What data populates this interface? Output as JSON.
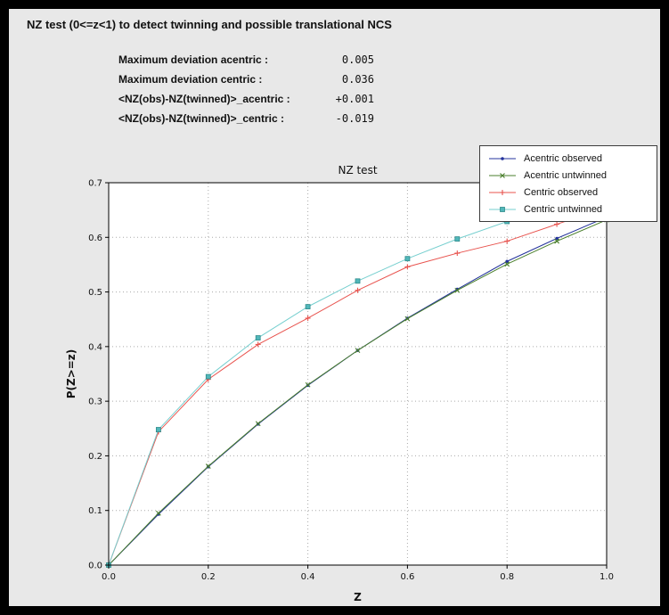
{
  "window": {
    "title": "NZ test (0<=z<1) to detect twinning and possible translational NCS"
  },
  "stats": {
    "rows": [
      {
        "label": "Maximum deviation acentric :",
        "value": "0.005"
      },
      {
        "label": "Maximum deviation centric :",
        "value": "0.036"
      },
      {
        "label": "<NZ(obs)-NZ(twinned)>_acentric :",
        "value": "+0.001"
      },
      {
        "label": "<NZ(obs)-NZ(twinned)>_centric :",
        "value": "-0.019"
      }
    ]
  },
  "chart_data": {
    "type": "line",
    "title": "NZ test",
    "xlabel": "Z",
    "ylabel": "P(Z>=z)",
    "xlim": [
      0.0,
      1.0
    ],
    "ylim": [
      0.0,
      0.7
    ],
    "x_ticks": [
      0.0,
      0.2,
      0.4,
      0.6,
      0.8,
      1.0
    ],
    "y_ticks": [
      0.0,
      0.1,
      0.2,
      0.3,
      0.4,
      0.5,
      0.6,
      0.7
    ],
    "grid": "dotted",
    "grid_color": "#aaaaaa",
    "legend_position": "top-right",
    "x": [
      0.0,
      0.1,
      0.2,
      0.3,
      0.4,
      0.5,
      0.6,
      0.7,
      0.8,
      0.9,
      1.0
    ],
    "series": [
      {
        "name": "Acentric observed",
        "color": "#24339c",
        "marker": "dot",
        "values": [
          0.0,
          0.093,
          0.18,
          0.258,
          0.329,
          0.393,
          0.452,
          0.505,
          0.556,
          0.598,
          0.637
        ]
      },
      {
        "name": "Acentric untwinned",
        "color": "#4a7f2c",
        "marker": "x",
        "values": [
          0.0,
          0.095,
          0.181,
          0.259,
          0.33,
          0.393,
          0.451,
          0.503,
          0.551,
          0.593,
          0.632
        ]
      },
      {
        "name": "Centric observed",
        "color": "#e8534e",
        "marker": "plus",
        "values": [
          0.0,
          0.244,
          0.34,
          0.404,
          0.452,
          0.503,
          0.546,
          0.571,
          0.593,
          0.624,
          0.655
        ]
      },
      {
        "name": "Centric untwinned",
        "color": "#76cfcf",
        "marker": "square",
        "marker_color": "#52b7ba",
        "marker_edge": "#2e8b8b",
        "values": [
          0.0,
          0.248,
          0.345,
          0.416,
          0.473,
          0.52,
          0.561,
          0.597,
          0.629,
          0.657,
          0.683
        ]
      }
    ]
  }
}
